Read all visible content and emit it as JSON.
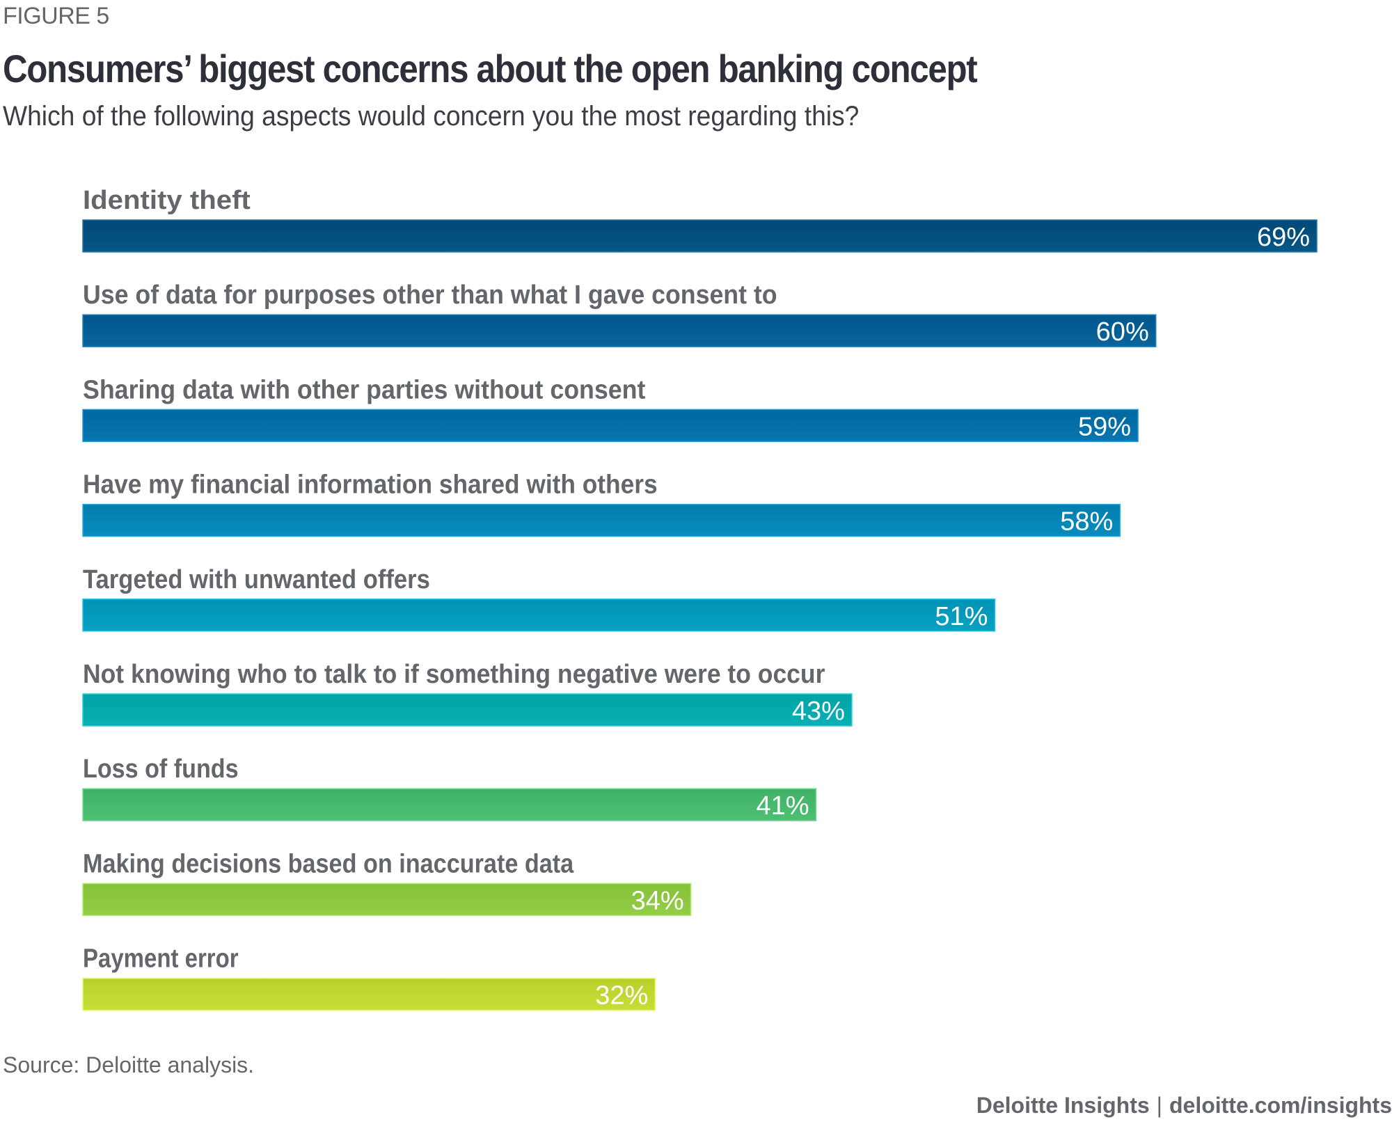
{
  "figure_label": "FIGURE 5",
  "chart_data": {
    "type": "bar",
    "orientation": "horizontal",
    "title": "Consumers’ biggest concerns about the open banking concept",
    "subtitle": "Which of the following aspects would concern you the most regarding this?",
    "xlabel": "",
    "ylabel": "",
    "xlim": [
      0,
      69
    ],
    "grid": false,
    "unit": "%",
    "categories": [
      "Identity theft",
      "Use of data for purposes other than what I gave consent to",
      "Sharing data with other parties without consent",
      "Have my financial information shared with others",
      "Targeted with unwanted offers",
      "Not knowing who to talk to if something negative were to occur",
      "Loss of funds",
      "Making decisions based on inaccurate data",
      "Payment error"
    ],
    "values": [
      69,
      60,
      59,
      58,
      51,
      43,
      41,
      34,
      32
    ],
    "data_labels": [
      "69%",
      "60%",
      "59%",
      "58%",
      "51%",
      "43%",
      "41%",
      "34%",
      "32%"
    ],
    "colors": [
      "#004F7E",
      "#005D93",
      "#006EA8",
      "#0084B5",
      "#0099BA",
      "#00A9AC",
      "#46B86B",
      "#8CC63F",
      "#BFD630"
    ]
  },
  "source": "Source: Deloitte analysis.",
  "footer": {
    "brand": "Deloitte Insights",
    "separator": "|",
    "url": "deloitte.com/insights"
  }
}
